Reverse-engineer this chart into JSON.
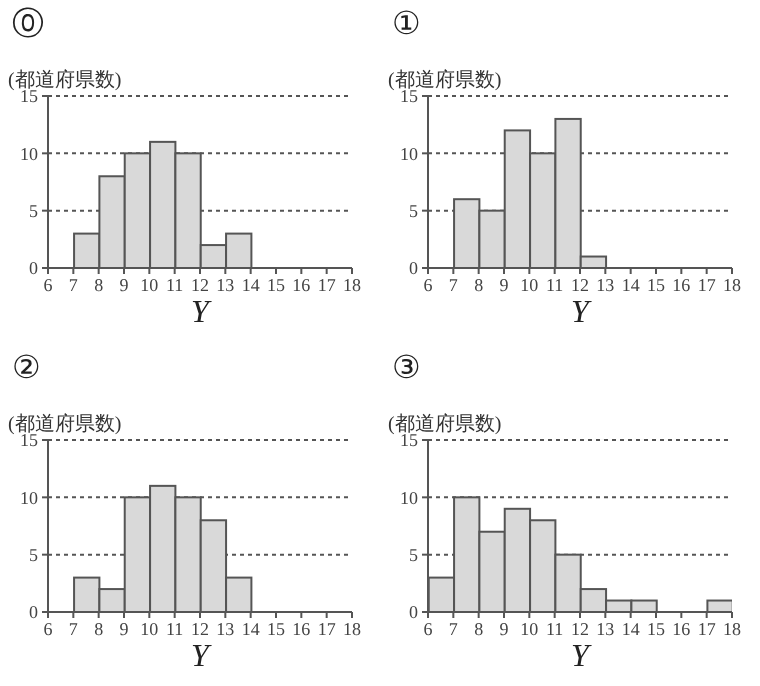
{
  "chart_data": [
    {
      "type": "histogram",
      "title": "⓪",
      "ylabel": "(都道府県数)",
      "xlabel": "Y",
      "bins": [
        6,
        7,
        8,
        9,
        10,
        11,
        12,
        13,
        14,
        15,
        16,
        17,
        18
      ],
      "values": [
        0,
        3,
        8,
        10,
        11,
        10,
        2,
        3,
        0,
        0,
        0,
        0
      ],
      "color": "#d9d9d9",
      "xlim": [
        6,
        18
      ],
      "xticks": [
        6,
        7,
        8,
        9,
        10,
        11,
        12,
        13,
        14,
        15,
        16,
        17,
        18
      ],
      "ylim": [
        0,
        15
      ],
      "yticks": [
        0,
        5,
        10,
        15
      ],
      "grid": "y"
    },
    {
      "type": "histogram",
      "title": "①",
      "ylabel": "(都道府県数)",
      "xlabel": "Y",
      "bins": [
        6,
        7,
        8,
        9,
        10,
        11,
        12,
        13,
        14,
        15,
        16,
        17,
        18
      ],
      "values": [
        0,
        6,
        5,
        12,
        10,
        13,
        1,
        0,
        0,
        0,
        0,
        0
      ],
      "color": "#d9d9d9",
      "xlim": [
        6,
        18
      ],
      "xticks": [
        6,
        7,
        8,
        9,
        10,
        11,
        12,
        13,
        14,
        15,
        16,
        17,
        18
      ],
      "ylim": [
        0,
        15
      ],
      "yticks": [
        0,
        5,
        10,
        15
      ],
      "grid": "y"
    },
    {
      "type": "histogram",
      "title": "②",
      "ylabel": "(都道府県数)",
      "xlabel": "Y",
      "bins": [
        6,
        7,
        8,
        9,
        10,
        11,
        12,
        13,
        14,
        15,
        16,
        17,
        18
      ],
      "values": [
        0,
        3,
        2,
        10,
        11,
        10,
        8,
        3,
        0,
        0,
        0,
        0
      ],
      "color": "#d9d9d9",
      "xlim": [
        6,
        18
      ],
      "xticks": [
        6,
        7,
        8,
        9,
        10,
        11,
        12,
        13,
        14,
        15,
        16,
        17,
        18
      ],
      "ylim": [
        0,
        15
      ],
      "yticks": [
        0,
        5,
        10,
        15
      ],
      "grid": "y"
    },
    {
      "type": "histogram",
      "title": "③",
      "ylabel": "(都道府県数)",
      "xlabel": "Y",
      "bins": [
        6,
        7,
        8,
        9,
        10,
        11,
        12,
        13,
        14,
        15,
        16,
        17,
        18
      ],
      "values": [
        3,
        10,
        7,
        9,
        8,
        5,
        2,
        1,
        1,
        0,
        0,
        1
      ],
      "color": "#d9d9d9",
      "xlim": [
        6,
        18
      ],
      "xticks": [
        6,
        7,
        8,
        9,
        10,
        11,
        12,
        13,
        14,
        15,
        16,
        17,
        18
      ],
      "ylim": [
        0,
        15
      ],
      "yticks": [
        0,
        5,
        10,
        15
      ],
      "grid": "y"
    }
  ]
}
